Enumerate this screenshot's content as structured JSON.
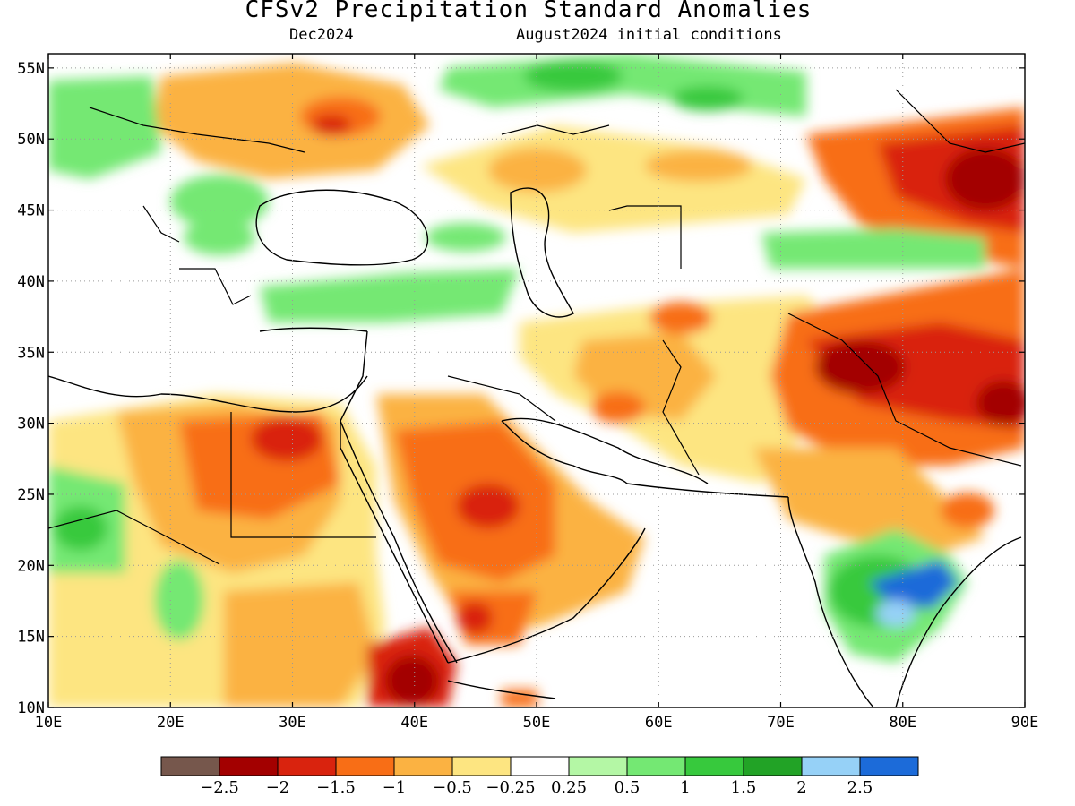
{
  "header": {
    "title": "CFSv2 Precipitation Standard Anomalies",
    "forecast_month": "Dec2024",
    "initial_conditions": "August2024 initial conditions"
  },
  "map": {
    "lon_labels": [
      "10E",
      "20E",
      "30E",
      "40E",
      "50E",
      "60E",
      "70E",
      "80E",
      "90E"
    ],
    "lat_labels": [
      "55N",
      "50N",
      "45N",
      "40N",
      "35N",
      "30N",
      "25N",
      "20N",
      "15N",
      "10N"
    ],
    "lon_range": [
      10,
      90
    ],
    "lat_range": [
      10,
      56
    ],
    "grid": "dotted"
  },
  "colorbar": {
    "colors": [
      "#76574c",
      "#a30000",
      "#d9230e",
      "#f86e16",
      "#fbb242",
      "#fde581",
      "#ffffff",
      "#b4f7a5",
      "#74e873",
      "#37c93d",
      "#22a326",
      "#96d1f7",
      "#1c6bd9"
    ],
    "labels": [
      "−2.5",
      "−2",
      "−1.5",
      "−1",
      "−0.5",
      "−0.25",
      "0.25",
      "0.5",
      "1",
      "1.5",
      "2",
      "2.5"
    ]
  }
}
